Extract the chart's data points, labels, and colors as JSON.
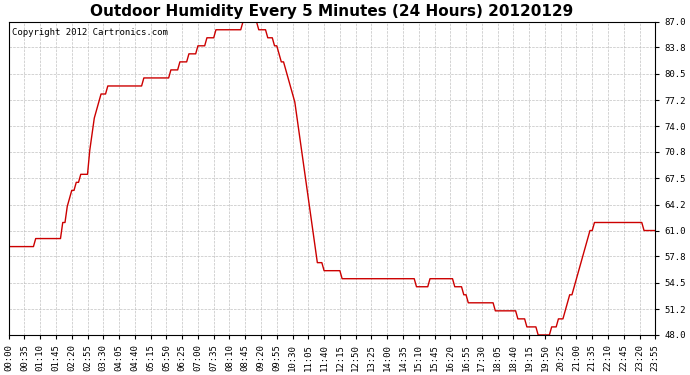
{
  "title": "Outdoor Humidity Every 5 Minutes (24 Hours) 20120129",
  "copyright": "Copyright 2012 Cartronics.com",
  "line_color": "#cc0000",
  "bg_color": "#ffffff",
  "plot_bg_color": "#ffffff",
  "grid_color": "#bbbbbb",
  "ylim": [
    48.0,
    87.0
  ],
  "yticks": [
    48.0,
    51.2,
    54.5,
    57.8,
    61.0,
    64.2,
    67.5,
    70.8,
    74.0,
    77.2,
    80.5,
    83.8,
    87.0
  ],
  "title_fontsize": 11,
  "tick_fontsize": 6.5,
  "copyright_fontsize": 6.5,
  "humidity_data": [
    59,
    59,
    59,
    59,
    59,
    59,
    59,
    59,
    59,
    59,
    59,
    59,
    60,
    60,
    60,
    60,
    60,
    60,
    60,
    60,
    60,
    60,
    60,
    60,
    62,
    62,
    64,
    65,
    66,
    66,
    67,
    67,
    68,
    68,
    68,
    68,
    71,
    73,
    75,
    76,
    77,
    78,
    78,
    78,
    79,
    79,
    79,
    79,
    79,
    79,
    79,
    79,
    79,
    79,
    79,
    79,
    79,
    79,
    79,
    79,
    80,
    80,
    80,
    80,
    80,
    80,
    80,
    80,
    80,
    80,
    80,
    80,
    81,
    81,
    81,
    81,
    82,
    82,
    82,
    82,
    83,
    83,
    83,
    83,
    84,
    84,
    84,
    84,
    85,
    85,
    85,
    85,
    86,
    86,
    86,
    86,
    86,
    86,
    86,
    86,
    86,
    86,
    86,
    86,
    87,
    87,
    87,
    87,
    87,
    87,
    87,
    86,
    86,
    86,
    86,
    85,
    85,
    85,
    84,
    84,
    83,
    82,
    82,
    81,
    80,
    79,
    78,
    77,
    75,
    73,
    71,
    69,
    67,
    65,
    63,
    61,
    59,
    57,
    57,
    57,
    56,
    56,
    56,
    56,
    56,
    56,
    56,
    56,
    55,
    55,
    55,
    55,
    55,
    55,
    55,
    55,
    55,
    55,
    55,
    55,
    55,
    55,
    55,
    55,
    55,
    55,
    55,
    55,
    55,
    55,
    55,
    55,
    55,
    55,
    55,
    55,
    55,
    55,
    55,
    55,
    55,
    54,
    54,
    54,
    54,
    54,
    54,
    55,
    55,
    55,
    55,
    55,
    55,
    55,
    55,
    55,
    55,
    55,
    54,
    54,
    54,
    54,
    53,
    53,
    52,
    52,
    52,
    52,
    52,
    52,
    52,
    52,
    52,
    52,
    52,
    52,
    51,
    51,
    51,
    51,
    51,
    51,
    51,
    51,
    51,
    51,
    50,
    50,
    50,
    50,
    49,
    49,
    49,
    49,
    49,
    48,
    48,
    48,
    48,
    48,
    48,
    49,
    49,
    49,
    50,
    50,
    50,
    51,
    52,
    53,
    53,
    54,
    55,
    56,
    57,
    58,
    59,
    60,
    61,
    61,
    62,
    62,
    62,
    62,
    62,
    62,
    62,
    62,
    62,
    62,
    62,
    62,
    62,
    62,
    62,
    62,
    62,
    62,
    62,
    62,
    62,
    62,
    61,
    61,
    61,
    61,
    61,
    61,
    61,
    61,
    61,
    61,
    61,
    61,
    61,
    61,
    61,
    61,
    61,
    61,
    61,
    61,
    61,
    61,
    61,
    61,
    61,
    61,
    61,
    61,
    61,
    61
  ]
}
